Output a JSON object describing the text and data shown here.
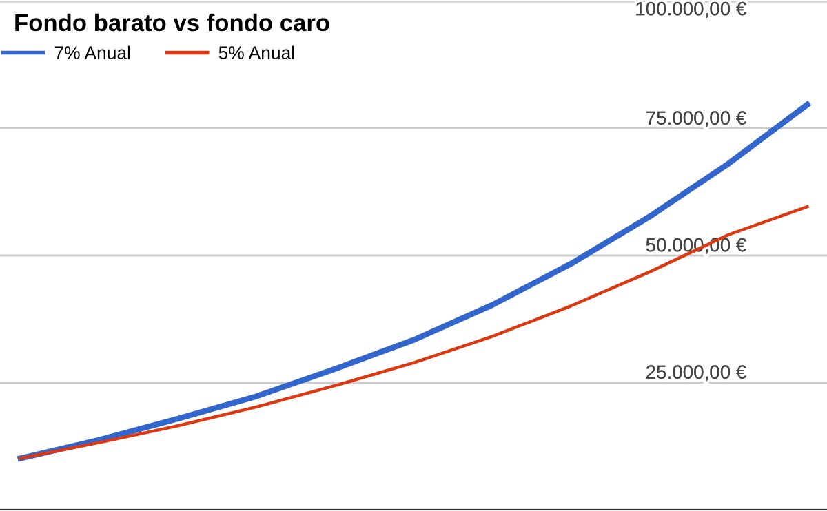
{
  "chart_data": {
    "type": "line",
    "title": "Fondo barato vs fondo caro",
    "categories": [
      null,
      null,
      null,
      null,
      null,
      null,
      null,
      null,
      null,
      null,
      null
    ],
    "series": [
      {
        "name": "7% Anual",
        "color": "#3366cc",
        "values": [
          10100,
          13700,
          17900,
          22300,
          27700,
          33400,
          40300,
          48400,
          57700,
          68100,
          79700
        ]
      },
      {
        "name": "5% Anual",
        "color": "#dc3912",
        "values": [
          10100,
          13200,
          16500,
          20200,
          24400,
          28900,
          34100,
          40100,
          46800,
          54100,
          59600
        ]
      }
    ],
    "ylim": [
      0,
      100000
    ],
    "yticks": [
      {
        "value": 0,
        "label": null
      },
      {
        "value": 25000,
        "label": "25.000,00 €"
      },
      {
        "value": 50000,
        "label": "50.000,00 €"
      },
      {
        "value": 75000,
        "label": "75.000,00 €"
      },
      {
        "value": 100000,
        "label": "100.000,00 €"
      }
    ],
    "grid": "y",
    "legend": "top left",
    "marker": "none",
    "line_style": "solid"
  }
}
